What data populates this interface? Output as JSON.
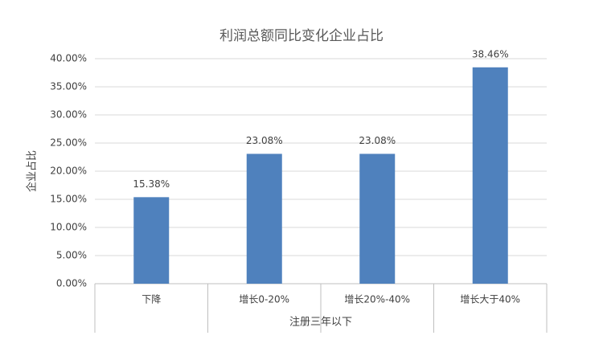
{
  "chart_data": {
    "type": "bar",
    "title": "利润总额同比变化企业占比",
    "y_label": "企业占比",
    "x_label": "注册三年以下",
    "categories": [
      "下降",
      "增长0-20%",
      "增长20%-40%",
      "增长大于40%"
    ],
    "values": [
      15.38,
      23.08,
      23.08,
      38.46
    ],
    "value_labels": [
      "15.38%",
      "23.08%",
      "23.08%",
      "38.46%"
    ],
    "color": "#4f81bd",
    "ylim": [
      0,
      40
    ],
    "yticks": [
      {
        "value": 0,
        "label": "0.00%"
      },
      {
        "value": 5,
        "label": "5.00%"
      },
      {
        "value": 10,
        "label": "10.00%"
      },
      {
        "value": 15,
        "label": "15.00%"
      },
      {
        "value": 20,
        "label": "20.00%"
      },
      {
        "value": 25,
        "label": "25.00%"
      },
      {
        "value": 30,
        "label": "30.00%"
      },
      {
        "value": 35,
        "label": "35.00%"
      },
      {
        "value": 40,
        "label": "40.00%"
      }
    ],
    "grid": true
  }
}
